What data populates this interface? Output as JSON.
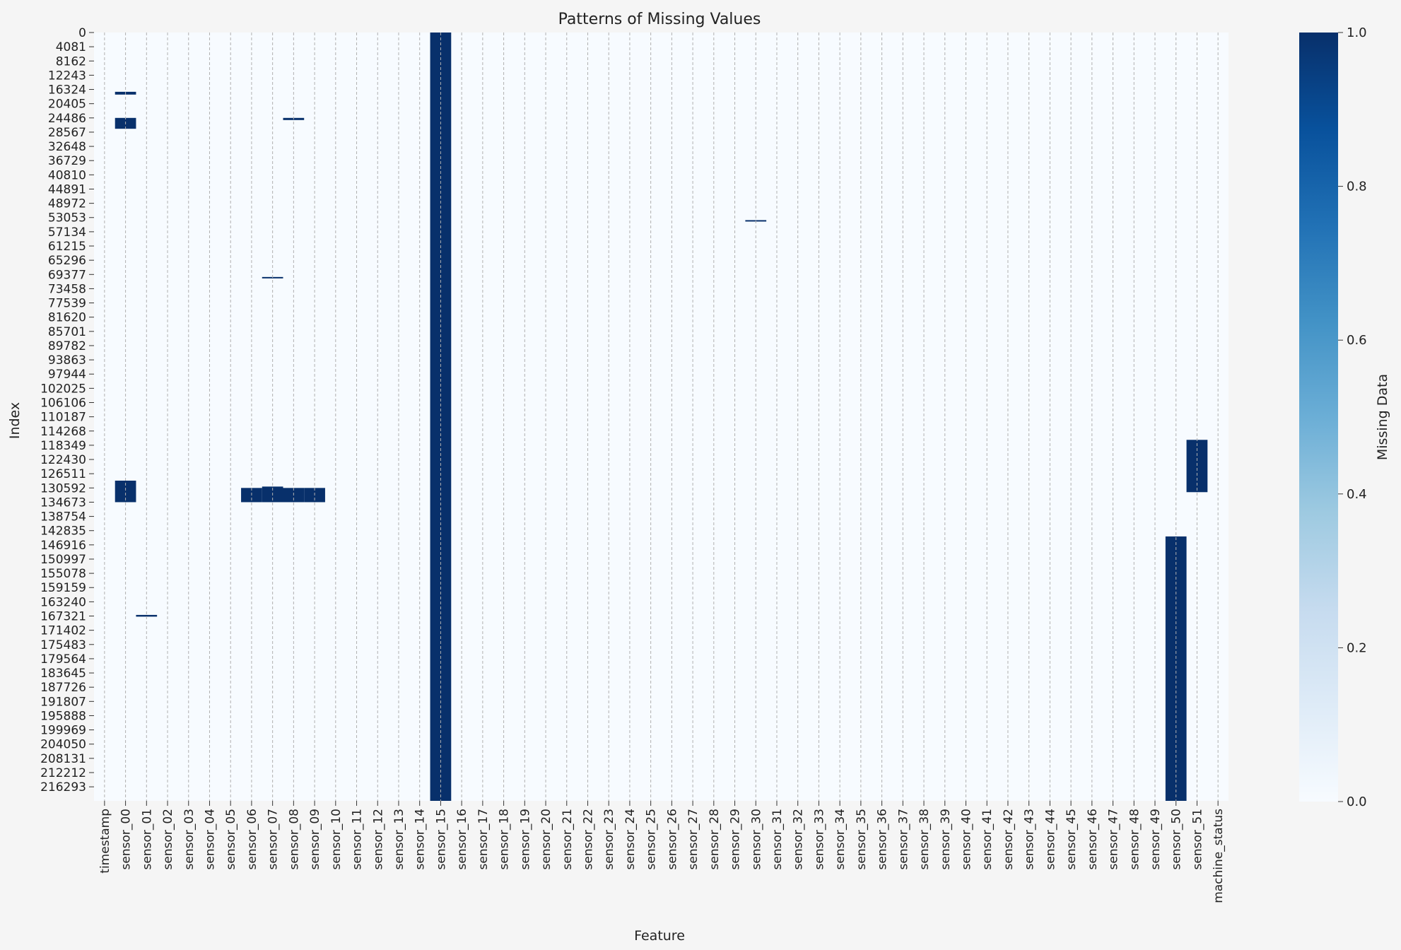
{
  "chart_data": {
    "type": "heatmap",
    "title": "Patterns of Missing Values",
    "xlabel": "Feature",
    "ylabel": "Index",
    "colorbar": {
      "label": "Missing Data",
      "ticks": [
        "0.0",
        "0.2",
        "0.4",
        "0.6",
        "0.8",
        "1.0"
      ],
      "range": [
        0.0,
        1.0
      ],
      "colormap": "Blues",
      "color_low": "#f7fbff",
      "color_high": "#08306b"
    },
    "grid": "dashed vertical lines between columns",
    "columns": [
      "timestamp",
      "sensor_00",
      "sensor_01",
      "sensor_02",
      "sensor_03",
      "sensor_04",
      "sensor_05",
      "sensor_06",
      "sensor_07",
      "sensor_08",
      "sensor_09",
      "sensor_10",
      "sensor_11",
      "sensor_12",
      "sensor_13",
      "sensor_14",
      "sensor_15",
      "sensor_16",
      "sensor_17",
      "sensor_18",
      "sensor_19",
      "sensor_20",
      "sensor_21",
      "sensor_22",
      "sensor_23",
      "sensor_24",
      "sensor_25",
      "sensor_26",
      "sensor_27",
      "sensor_28",
      "sensor_29",
      "sensor_30",
      "sensor_31",
      "sensor_32",
      "sensor_33",
      "sensor_34",
      "sensor_35",
      "sensor_36",
      "sensor_37",
      "sensor_38",
      "sensor_39",
      "sensor_40",
      "sensor_41",
      "sensor_42",
      "sensor_43",
      "sensor_44",
      "sensor_45",
      "sensor_46",
      "sensor_47",
      "sensor_48",
      "sensor_49",
      "sensor_50",
      "sensor_51",
      "machine_status"
    ],
    "row_ticks": [
      "0",
      "4081",
      "8162",
      "12243",
      "16324",
      "20405",
      "24486",
      "28567",
      "32648",
      "36729",
      "40810",
      "44891",
      "48972",
      "53053",
      "57134",
      "61215",
      "65296",
      "69377",
      "73458",
      "77539",
      "81620",
      "85701",
      "89782",
      "93863",
      "97944",
      "102025",
      "106106",
      "110187",
      "114268",
      "118349",
      "122430",
      "126511",
      "130592",
      "134673",
      "138754",
      "142835",
      "146916",
      "150997",
      "155078",
      "159159",
      "163240",
      "167321",
      "171402",
      "175483",
      "179564",
      "183645",
      "187726",
      "191807",
      "195888",
      "199969",
      "204050",
      "208131",
      "212212",
      "216293"
    ],
    "row_range": [
      0,
      220320
    ],
    "missing_blocks": [
      {
        "column": "sensor_00",
        "start": 17000,
        "end": 17800
      },
      {
        "column": "sensor_00",
        "start": 24486,
        "end": 27600
      },
      {
        "column": "sensor_00",
        "start": 128500,
        "end": 134673
      },
      {
        "column": "sensor_01",
        "start": 167000,
        "end": 167500
      },
      {
        "column": "sensor_06",
        "start": 130592,
        "end": 134673
      },
      {
        "column": "sensor_07",
        "start": 130200,
        "end": 134673
      },
      {
        "column": "sensor_07",
        "start": 70100,
        "end": 70500
      },
      {
        "column": "sensor_08",
        "start": 24486,
        "end": 25100
      },
      {
        "column": "sensor_08",
        "start": 130592,
        "end": 134673
      },
      {
        "column": "sensor_09",
        "start": 130592,
        "end": 134673
      },
      {
        "column": "sensor_15",
        "start": 0,
        "end": 220320
      },
      {
        "column": "sensor_30",
        "start": 53800,
        "end": 54200
      },
      {
        "column": "sensor_50",
        "start": 144500,
        "end": 220320
      },
      {
        "column": "sensor_51",
        "start": 116800,
        "end": 131800
      }
    ]
  }
}
